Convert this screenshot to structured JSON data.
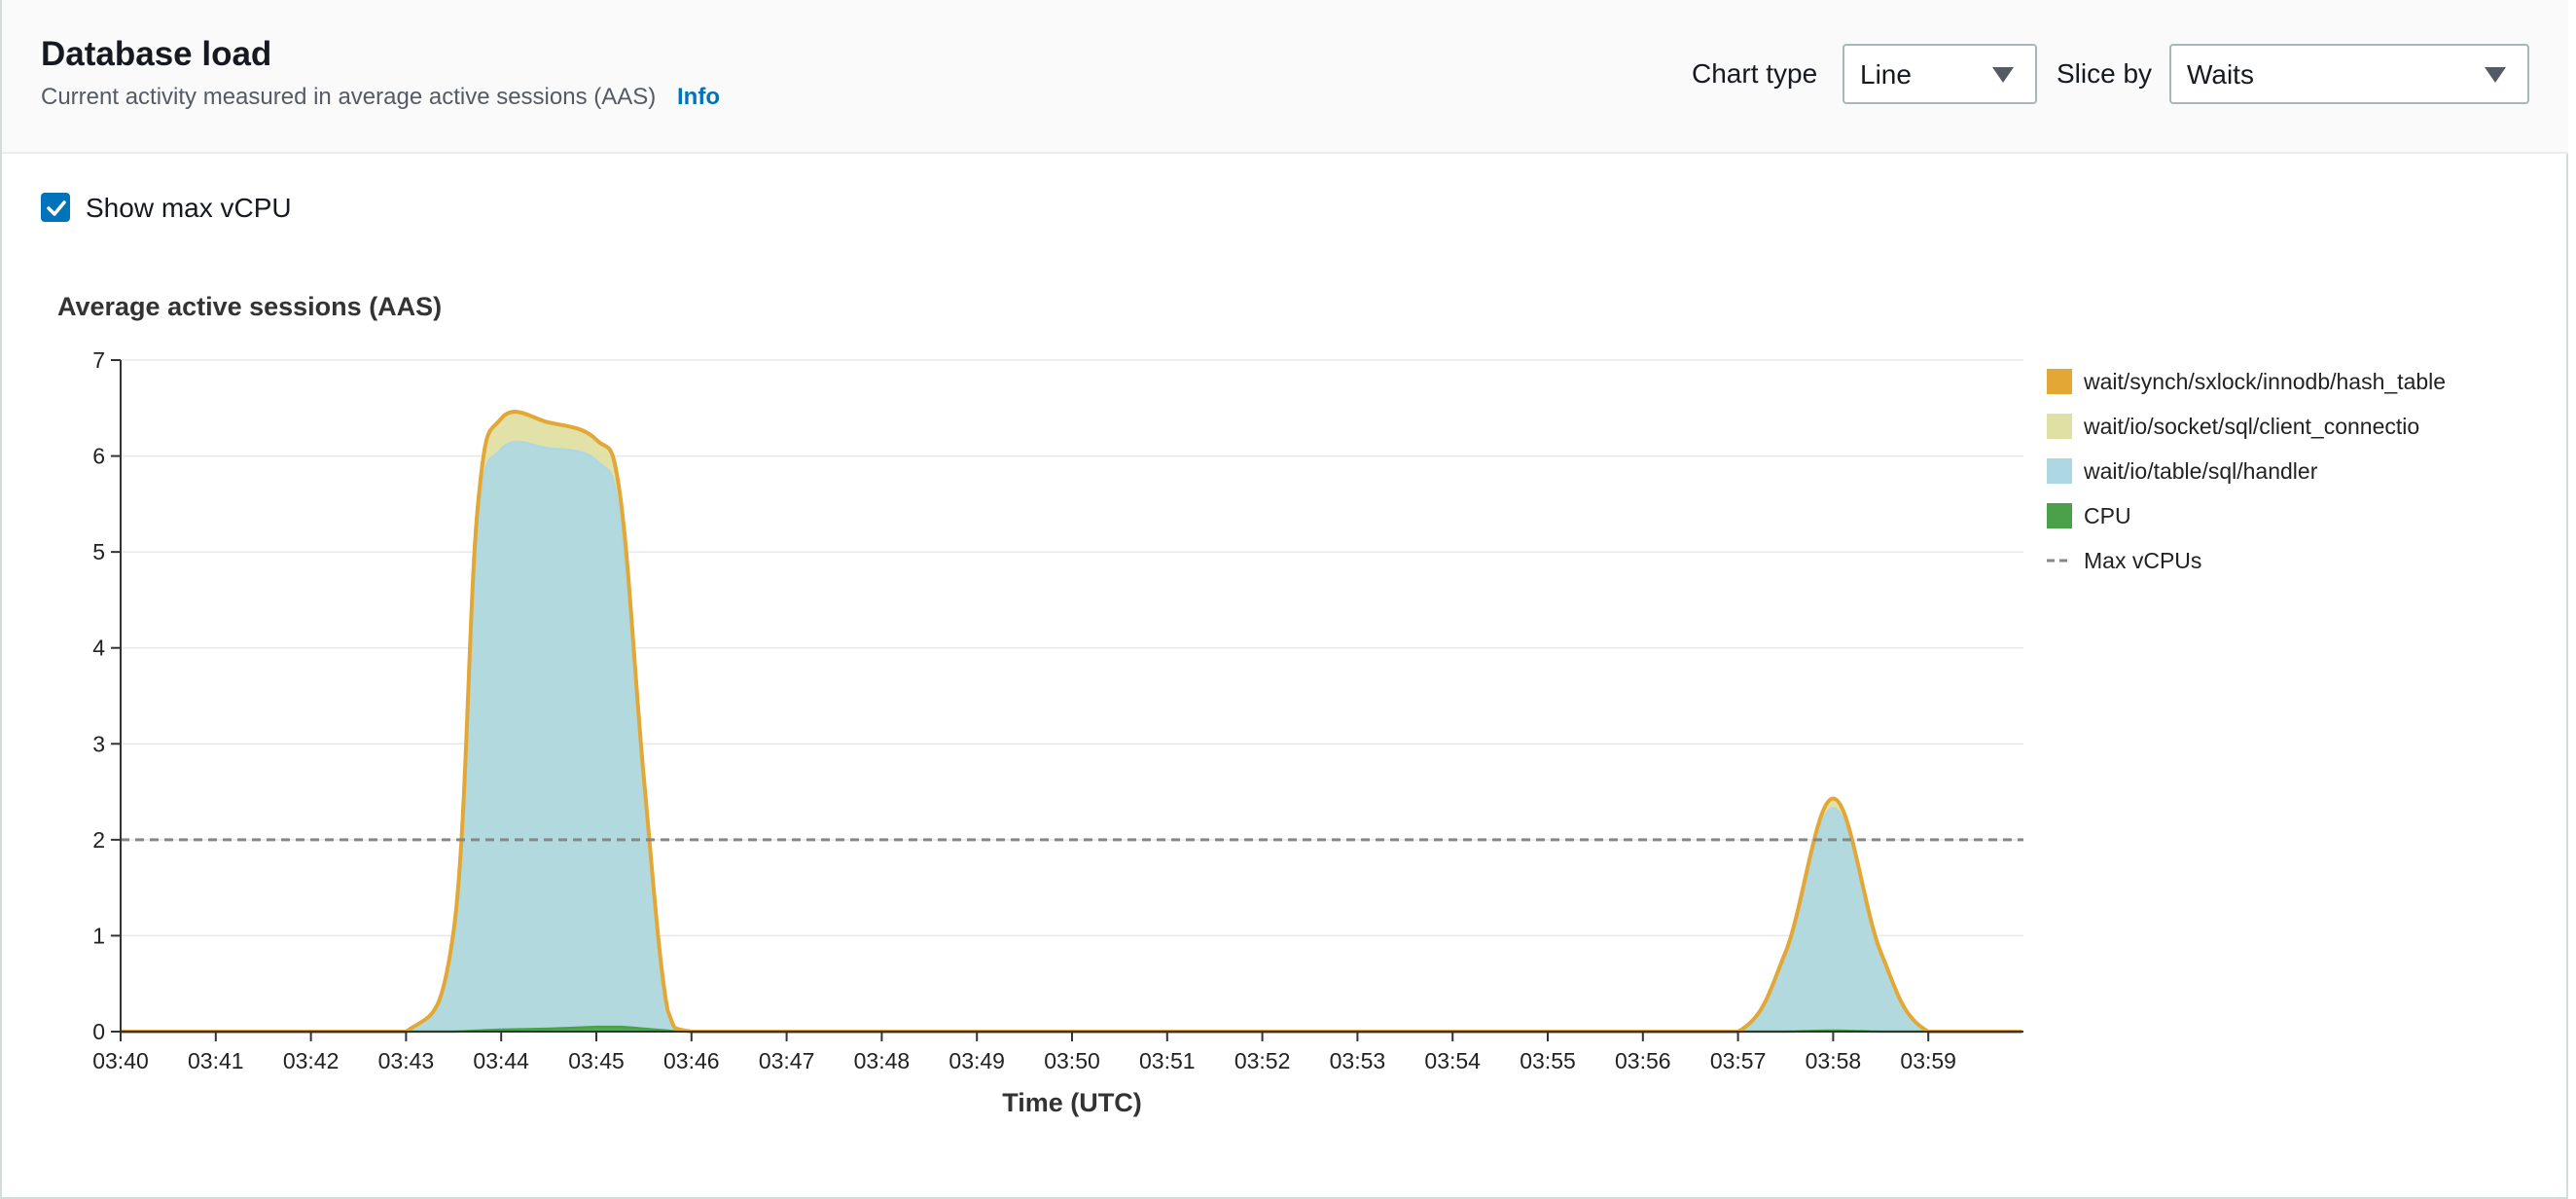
{
  "header": {
    "title": "Database load",
    "subtitle": "Current activity measured in average active sessions (AAS)",
    "info_link": "Info",
    "chart_type_label": "Chart type",
    "chart_type_value": "Line",
    "slice_by_label": "Slice by",
    "slice_by_value": "Waits"
  },
  "options": {
    "show_max_vcpu_label": "Show max vCPU",
    "show_max_vcpu_checked": true
  },
  "colors": {
    "hash_table": "#e3a736",
    "client_connection": "#dfe0a3",
    "handler": "#add8e3",
    "cpu": "#4aa14a",
    "max_vcpu": "#878787",
    "link": "#0073bb"
  },
  "chart_data": {
    "type": "area",
    "title": "Average active sessions (AAS)",
    "xlabel": "Time (UTC)",
    "ylabel": "",
    "ylim": [
      0,
      7
    ],
    "yticks": [
      "0",
      "1",
      "2",
      "3",
      "4",
      "5",
      "6",
      "7"
    ],
    "xticks": [
      "03:40",
      "03:41",
      "03:42",
      "03:43",
      "03:44",
      "03:45",
      "03:46",
      "03:47",
      "03:48",
      "03:49",
      "03:50",
      "03:51",
      "03:52",
      "03:53",
      "03:54",
      "03:55",
      "03:56",
      "03:57",
      "03:58",
      "03:59"
    ],
    "x": [
      "03:40",
      "03:41",
      "03:42",
      "03:43",
      "03:43:30",
      "03:43:45",
      "03:44",
      "03:44:30",
      "03:45",
      "03:45:15",
      "03:45:30",
      "03:45:45",
      "03:46",
      "03:47",
      "03:48",
      "03:49",
      "03:50",
      "03:51",
      "03:52",
      "03:53",
      "03:54",
      "03:55",
      "03:56",
      "03:57",
      "03:57:30",
      "03:58",
      "03:58:30",
      "03:59",
      "03:59:59"
    ],
    "series": [
      {
        "name": "CPU",
        "values": [
          0,
          0,
          0,
          0,
          0,
          0.01,
          0.02,
          0.03,
          0.05,
          0.05,
          0.03,
          0.01,
          0,
          0,
          0,
          0,
          0,
          0,
          0,
          0,
          0,
          0,
          0,
          0,
          0,
          0.01,
          0,
          0,
          0
        ]
      },
      {
        "name": "wait/io/table/sql/handler",
        "values": [
          0,
          0,
          0,
          0,
          1.0,
          5.2,
          6.05,
          6.05,
          5.9,
          5.3,
          2.5,
          0.2,
          0,
          0,
          0,
          0,
          0,
          0,
          0,
          0,
          0,
          0,
          0,
          0,
          0.8,
          2.32,
          0.8,
          0,
          0
        ]
      },
      {
        "name": "wait/io/socket/sql/client_connectio",
        "values": [
          0,
          0,
          0,
          0,
          0.04,
          0.2,
          0.3,
          0.25,
          0.2,
          0.22,
          0.1,
          0.01,
          0,
          0,
          0,
          0,
          0,
          0,
          0,
          0,
          0,
          0,
          0,
          0,
          0.02,
          0.08,
          0.02,
          0,
          0
        ]
      },
      {
        "name": "wait/synch/sxlock/innodb/hash_table",
        "values": [
          0,
          0,
          0,
          0,
          0.01,
          0.02,
          0.02,
          0.02,
          0.02,
          0.02,
          0.01,
          0,
          0,
          0,
          0,
          0,
          0,
          0,
          0,
          0,
          0,
          0,
          0,
          0,
          0.01,
          0.02,
          0.01,
          0,
          0
        ]
      }
    ],
    "max_vcpus": {
      "name": "Max vCPUs",
      "value": 2
    },
    "legend": [
      "wait/synch/sxlock/innodb/hash_table",
      "wait/io/socket/sql/client_connectio",
      "wait/io/table/sql/handler",
      "CPU",
      "Max vCPUs"
    ],
    "legend_position": "right",
    "grid": true
  }
}
